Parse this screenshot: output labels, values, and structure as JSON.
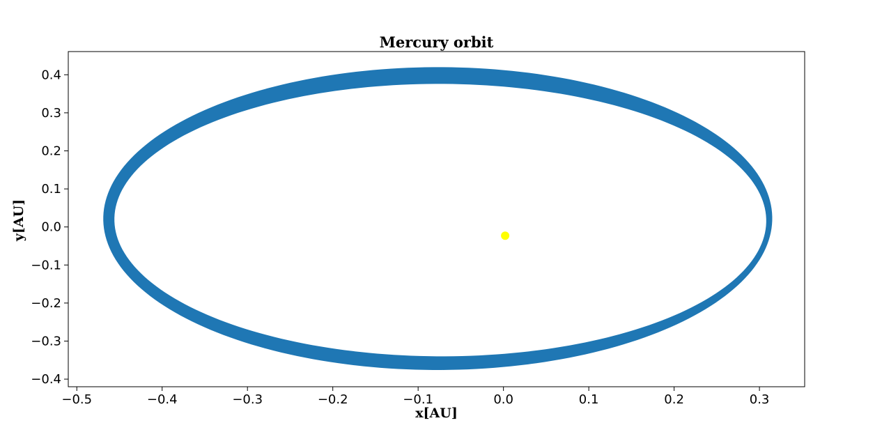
{
  "chart_data": {
    "type": "scatter",
    "title": "Mercury orbit",
    "xlabel": "x[AU]",
    "ylabel": "y[AU]",
    "xlim": [
      -0.51,
      0.353
    ],
    "ylim": [
      -0.42,
      0.461
    ],
    "xticks": [
      -0.5,
      -0.4,
      -0.3,
      -0.2,
      -0.1,
      0.0,
      0.1,
      0.2,
      0.3
    ],
    "yticks": [
      -0.4,
      -0.3,
      -0.2,
      -0.1,
      0.0,
      0.1,
      0.2,
      0.3,
      0.4
    ],
    "xtick_labels": [
      "−0.5",
      "−0.4",
      "−0.3",
      "−0.2",
      "−0.1",
      "0.0",
      "0.1",
      "0.2",
      "0.3"
    ],
    "ytick_labels": [
      "−0.4",
      "−0.3",
      "−0.2",
      "−0.1",
      "0.0",
      "0.1",
      "0.2",
      "0.3",
      "0.4"
    ],
    "grid": false,
    "series": [
      {
        "kind": "orbit-band",
        "color": "#1f77b4",
        "inner_orbit": {
          "center": [
            -0.074,
            0.018
          ],
          "semi_axis_x": 0.382,
          "semi_axis_y": 0.358
        },
        "outer_orbit": {
          "center": [
            -0.077,
            0.022
          ],
          "semi_axis_x": 0.392,
          "semi_axis_y": 0.398
        },
        "rotation_deg": -2.3
      },
      {
        "kind": "point",
        "label": "Sun",
        "color": "#ffff00",
        "x": 0.002,
        "y": -0.023
      }
    ]
  }
}
